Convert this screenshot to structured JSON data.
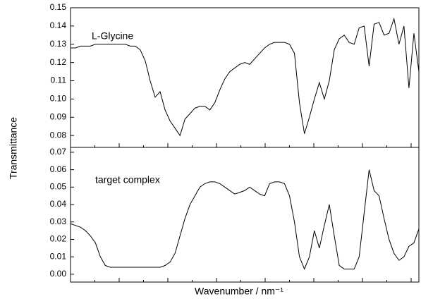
{
  "ylabel": "Transmittance",
  "xlabel": "Wavenumber / nm⁻¹",
  "chart_data": [
    {
      "type": "line",
      "annotation": "L-Glycine",
      "color": "#000000",
      "ylim": [
        0.0735,
        0.15
      ],
      "yticks": [
        0.08,
        0.09,
        {
          "value": 0.1,
          "label": "0.10"
        },
        0.11,
        0.12,
        0.13,
        0.14,
        0.15
      ],
      "values": [
        0.128,
        0.128,
        0.129,
        0.129,
        0.129,
        0.13,
        0.13,
        0.13,
        0.13,
        0.13,
        0.13,
        0.13,
        0.129,
        0.129,
        0.127,
        0.121,
        0.11,
        0.101,
        0.104,
        0.094,
        0.088,
        0.084,
        0.08,
        0.089,
        0.092,
        0.095,
        0.096,
        0.096,
        0.094,
        0.098,
        0.105,
        0.111,
        0.115,
        0.117,
        0.119,
        0.12,
        0.119,
        0.122,
        0.125,
        0.128,
        0.13,
        0.131,
        0.131,
        0.131,
        0.13,
        0.125,
        0.098,
        0.081,
        0.09,
        0.1,
        0.109,
        0.1,
        0.11,
        0.127,
        0.133,
        0.135,
        0.131,
        0.13,
        0.139,
        0.14,
        0.118,
        0.141,
        0.142,
        0.135,
        0.136,
        0.144,
        0.13,
        0.14,
        0.106,
        0.136,
        0.115
      ]
    },
    {
      "type": "line",
      "annotation": "target complex",
      "color": "#000000",
      "ylim": [
        -0.0045,
        0.0728
      ],
      "yticks": [
        {
          "value": 0,
          "label": "0.00"
        },
        0.01,
        0.02,
        0.03,
        0.04,
        0.05,
        0.06,
        0.07
      ],
      "values": [
        0.029,
        0.028,
        0.027,
        0.025,
        0.022,
        0.018,
        0.01,
        0.005,
        0.004,
        0.004,
        0.004,
        0.004,
        0.004,
        0.004,
        0.004,
        0.004,
        0.004,
        0.004,
        0.004,
        0.005,
        0.007,
        0.012,
        0.022,
        0.032,
        0.04,
        0.045,
        0.05,
        0.052,
        0.053,
        0.053,
        0.052,
        0.05,
        0.048,
        0.046,
        0.047,
        0.048,
        0.05,
        0.048,
        0.046,
        0.045,
        0.052,
        0.053,
        0.053,
        0.052,
        0.045,
        0.03,
        0.01,
        0.003,
        0.01,
        0.025,
        0.015,
        0.028,
        0.04,
        0.022,
        0.005,
        0.003,
        0.003,
        0.003,
        0.01,
        0.035,
        0.06,
        0.048,
        0.045,
        0.032,
        0.02,
        0.012,
        0.008,
        0.01,
        0.016,
        0.018,
        0.026
      ]
    }
  ]
}
